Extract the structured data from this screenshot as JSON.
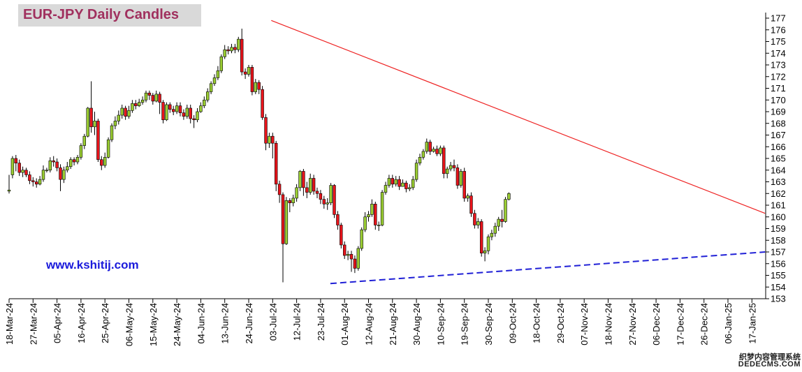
{
  "chart_data": {
    "type": "candlestick",
    "title": "EUR-JPY Daily  Candles",
    "watermark": "www.kshitij.com",
    "ylim": [
      153,
      177
    ],
    "y_ticks": [
      153,
      154,
      155,
      156,
      157,
      158,
      159,
      160,
      161,
      162,
      163,
      164,
      165,
      166,
      167,
      168,
      169,
      170,
      171,
      172,
      173,
      174,
      175,
      176,
      177
    ],
    "x_tick_labels": [
      "18-Mar-24",
      "27-Mar-24",
      "05-Apr-24",
      "16-Apr-24",
      "25-Apr-24",
      "06-May-24",
      "15-May-24",
      "24-May-24",
      "04-Jun-24",
      "13-Jun-24",
      "24-Jun-24",
      "03-Jul-24",
      "12-Jul-24",
      "23-Jul-24",
      "01-Aug-24",
      "12-Aug-24",
      "21-Aug-24",
      "30-Aug-24",
      "10-Sep-24",
      "19-Sep-24",
      "30-Sep-24",
      "09-Oct-24",
      "18-Oct-24",
      "29-Oct-24",
      "07-Nov-24",
      "18-Nov-24",
      "27-Nov-24",
      "06-Dec-24",
      "17-Dec-24",
      "26-Dec-24",
      "06-Jan-25",
      "17-Jan-25"
    ],
    "bars_per_tick": 7,
    "up_color": "#9acd32",
    "down_color": "#e8141b",
    "candles": [
      [
        162.2,
        162.3,
        163.6,
        162.0
      ],
      [
        163.6,
        165.0,
        165.2,
        163.3
      ],
      [
        165.0,
        164.6,
        165.3,
        163.9
      ],
      [
        164.6,
        163.8,
        164.9,
        163.5
      ],
      [
        163.8,
        164.0,
        164.3,
        163.4
      ],
      [
        164.0,
        163.6,
        164.2,
        163.4
      ],
      [
        163.6,
        163.1,
        163.9,
        162.8
      ],
      [
        163.1,
        163.0,
        163.4,
        162.6
      ],
      [
        163.0,
        162.8,
        163.3,
        162.5
      ],
      [
        162.8,
        163.2,
        163.5,
        162.7
      ],
      [
        163.2,
        164.0,
        164.4,
        163.0
      ],
      [
        164.0,
        164.0,
        164.2,
        163.8
      ],
      [
        164.0,
        164.8,
        165.1,
        163.8
      ],
      [
        164.8,
        164.7,
        165.2,
        164.3
      ],
      [
        164.7,
        164.2,
        165.0,
        163.9
      ],
      [
        164.2,
        163.2,
        164.5,
        162.2
      ],
      [
        163.2,
        164.0,
        164.3,
        162.9
      ],
      [
        164.0,
        164.3,
        164.7,
        163.8
      ],
      [
        164.3,
        164.9,
        165.1,
        164.1
      ],
      [
        164.9,
        164.7,
        165.1,
        164.4
      ],
      [
        164.7,
        165.1,
        165.3,
        164.5
      ],
      [
        165.1,
        166.1,
        166.3,
        164.9
      ],
      [
        166.1,
        166.9,
        167.1,
        165.8
      ],
      [
        166.9,
        169.3,
        169.4,
        166.8
      ],
      [
        169.3,
        167.7,
        171.6,
        167.2
      ],
      [
        167.7,
        168.2,
        169.0,
        167.0
      ],
      [
        168.2,
        164.9,
        168.4,
        164.7
      ],
      [
        164.9,
        164.4,
        165.2,
        164.0
      ],
      [
        164.4,
        165.1,
        165.5,
        164.2
      ],
      [
        165.1,
        166.6,
        166.8,
        165.0
      ],
      [
        166.6,
        167.8,
        168.0,
        166.4
      ],
      [
        167.8,
        168.2,
        168.6,
        167.5
      ],
      [
        168.2,
        168.7,
        169.1,
        167.9
      ],
      [
        168.7,
        169.3,
        169.6,
        168.4
      ],
      [
        169.3,
        168.6,
        169.5,
        168.3
      ],
      [
        168.6,
        169.1,
        169.5,
        168.4
      ],
      [
        169.1,
        169.7,
        170.0,
        168.9
      ],
      [
        169.7,
        169.5,
        170.0,
        169.2
      ],
      [
        169.5,
        169.8,
        170.1,
        169.4
      ],
      [
        169.8,
        170.0,
        170.3,
        169.6
      ],
      [
        170.0,
        170.6,
        170.8,
        169.8
      ],
      [
        170.6,
        170.4,
        170.8,
        170.0
      ],
      [
        170.4,
        169.9,
        170.6,
        169.6
      ],
      [
        169.9,
        170.5,
        170.8,
        169.8
      ],
      [
        170.5,
        169.8,
        170.7,
        168.8
      ],
      [
        169.8,
        168.3,
        170.0,
        168.0
      ],
      [
        168.3,
        169.6,
        169.8,
        168.2
      ],
      [
        169.6,
        169.2,
        169.8,
        168.9
      ],
      [
        169.2,
        169.0,
        169.5,
        168.7
      ],
      [
        169.0,
        169.5,
        169.8,
        168.8
      ],
      [
        169.5,
        168.9,
        169.8,
        168.6
      ],
      [
        168.9,
        168.6,
        169.2,
        168.3
      ],
      [
        168.6,
        169.3,
        169.6,
        168.4
      ],
      [
        169.3,
        168.4,
        169.6,
        168.0
      ],
      [
        168.4,
        168.3,
        168.7,
        167.6
      ],
      [
        168.3,
        169.0,
        169.3,
        168.1
      ],
      [
        169.0,
        169.5,
        169.8,
        168.9
      ],
      [
        169.5,
        170.0,
        170.3,
        169.3
      ],
      [
        170.0,
        170.7,
        171.0,
        169.8
      ],
      [
        170.7,
        171.4,
        171.6,
        170.5
      ],
      [
        171.4,
        171.9,
        172.2,
        171.2
      ],
      [
        171.9,
        172.5,
        172.9,
        171.7
      ],
      [
        172.5,
        173.7,
        173.9,
        172.3
      ],
      [
        173.7,
        174.3,
        174.7,
        173.5
      ],
      [
        174.3,
        174.2,
        174.6,
        173.9
      ],
      [
        174.2,
        174.5,
        174.8,
        174.0
      ],
      [
        174.5,
        174.3,
        174.8,
        174.0
      ],
      [
        174.3,
        175.2,
        175.4,
        174.1
      ],
      [
        175.2,
        172.4,
        176.1,
        172.1
      ],
      [
        172.4,
        172.2,
        172.7,
        171.8
      ],
      [
        172.2,
        172.8,
        173.0,
        172.0
      ],
      [
        172.8,
        170.7,
        173.0,
        170.4
      ],
      [
        170.7,
        171.5,
        171.8,
        170.5
      ],
      [
        171.5,
        170.9,
        171.7,
        170.5
      ],
      [
        170.9,
        168.5,
        171.2,
        168.3
      ],
      [
        168.5,
        166.3,
        168.8,
        165.7
      ],
      [
        166.3,
        166.9,
        167.2,
        165.9
      ],
      [
        166.9,
        166.3,
        167.2,
        165.0
      ],
      [
        166.3,
        162.8,
        166.5,
        162.2
      ],
      [
        162.8,
        161.9,
        163.1,
        161.2
      ],
      [
        161.9,
        157.7,
        162.1,
        154.4
      ],
      [
        157.7,
        161.4,
        161.7,
        157.6
      ],
      [
        161.4,
        161.2,
        161.6,
        160.4
      ],
      [
        161.2,
        161.6,
        161.9,
        160.9
      ],
      [
        161.6,
        162.5,
        162.8,
        161.3
      ],
      [
        162.5,
        163.9,
        164.0,
        162.2
      ],
      [
        163.9,
        162.5,
        164.1,
        161.8
      ],
      [
        162.5,
        162.1,
        163.0,
        161.6
      ],
      [
        162.1,
        163.3,
        163.7,
        161.9
      ],
      [
        163.3,
        162.2,
        163.6,
        161.9
      ],
      [
        162.2,
        162.0,
        162.5,
        161.6
      ],
      [
        162.0,
        161.5,
        162.3,
        161.1
      ],
      [
        161.5,
        161.1,
        161.8,
        160.7
      ],
      [
        161.1,
        161.2,
        161.6,
        160.6
      ],
      [
        161.2,
        162.7,
        162.9,
        161.0
      ],
      [
        162.7,
        160.2,
        162.8,
        159.9
      ],
      [
        160.2,
        159.3,
        160.5,
        158.9
      ],
      [
        159.3,
        157.6,
        159.5,
        157.3
      ],
      [
        157.6,
        156.7,
        157.9,
        156.4
      ],
      [
        156.7,
        156.8,
        157.1,
        156.3
      ],
      [
        156.8,
        156.4,
        157.1,
        155.3
      ],
      [
        156.4,
        155.6,
        156.7,
        155.2
      ],
      [
        155.6,
        157.3,
        157.5,
        155.4
      ],
      [
        157.3,
        158.9,
        159.1,
        157.1
      ],
      [
        158.9,
        160.0,
        160.4,
        158.7
      ],
      [
        160.0,
        160.2,
        160.5,
        159.6
      ],
      [
        160.2,
        161.1,
        161.5,
        160.0
      ],
      [
        161.1,
        159.3,
        161.3,
        158.9
      ],
      [
        159.3,
        159.3,
        159.6,
        158.8
      ],
      [
        159.3,
        162.1,
        162.3,
        159.2
      ],
      [
        162.1,
        162.7,
        163.0,
        161.9
      ],
      [
        162.7,
        163.3,
        163.6,
        162.5
      ],
      [
        163.3,
        162.8,
        163.6,
        162.5
      ],
      [
        162.8,
        163.2,
        163.5,
        162.6
      ],
      [
        163.2,
        162.6,
        163.5,
        162.3
      ],
      [
        162.6,
        162.9,
        163.2,
        162.6
      ],
      [
        162.9,
        162.4,
        163.1,
        162.1
      ],
      [
        162.4,
        162.5,
        162.8,
        162.2
      ],
      [
        162.5,
        163.2,
        163.5,
        162.3
      ],
      [
        163.2,
        164.6,
        164.9,
        163.0
      ],
      [
        164.6,
        165.1,
        165.4,
        164.4
      ],
      [
        165.1,
        165.6,
        165.8,
        164.9
      ],
      [
        165.6,
        166.4,
        166.7,
        165.4
      ],
      [
        166.4,
        165.6,
        166.6,
        165.3
      ],
      [
        165.6,
        165.8,
        166.0,
        165.5
      ],
      [
        165.8,
        165.4,
        166.1,
        165.2
      ],
      [
        165.4,
        165.9,
        166.1,
        165.2
      ],
      [
        165.9,
        163.7,
        166.1,
        163.3
      ],
      [
        163.7,
        164.1,
        164.3,
        163.3
      ],
      [
        164.1,
        164.4,
        164.7,
        163.9
      ],
      [
        164.4,
        164.2,
        164.9,
        163.9
      ],
      [
        164.2,
        162.7,
        164.5,
        162.4
      ],
      [
        162.7,
        163.9,
        164.1,
        162.5
      ],
      [
        163.9,
        161.6,
        164.2,
        161.3
      ],
      [
        161.6,
        161.8,
        162.0,
        161.3
      ],
      [
        161.8,
        160.3,
        162.1,
        160.0
      ],
      [
        160.3,
        159.3,
        160.6,
        159.0
      ],
      [
        159.3,
        159.6,
        159.9,
        159.0
      ],
      [
        159.6,
        156.9,
        159.8,
        156.6
      ],
      [
        156.9,
        157.1,
        157.4,
        156.2
      ],
      [
        157.1,
        158.3,
        158.5,
        156.8
      ],
      [
        158.3,
        158.6,
        158.9,
        158.0
      ],
      [
        158.6,
        159.2,
        159.5,
        158.3
      ],
      [
        159.2,
        159.8,
        160.0,
        158.8
      ],
      [
        159.8,
        159.6,
        160.6,
        159.1
      ],
      [
        159.6,
        161.5,
        161.7,
        159.5
      ],
      [
        161.5,
        162.0,
        162.1,
        161.4
      ]
    ],
    "resistance_line": {
      "from": [
        "03-Jul-24",
        176.8
      ],
      "to": [
        "17-Jan-25+",
        160.3
      ]
    },
    "support_line": {
      "from": [
        "23-Jul-24",
        154.3
      ],
      "to": [
        "17-Jan-25+",
        157.0
      ]
    }
  },
  "colors": {
    "resistance": "#ee2222",
    "support": "#1f1fd6",
    "axis": "#000000"
  },
  "logo": {
    "line1": "织梦内容管理系统",
    "line2": "DEDECMS.COM"
  }
}
